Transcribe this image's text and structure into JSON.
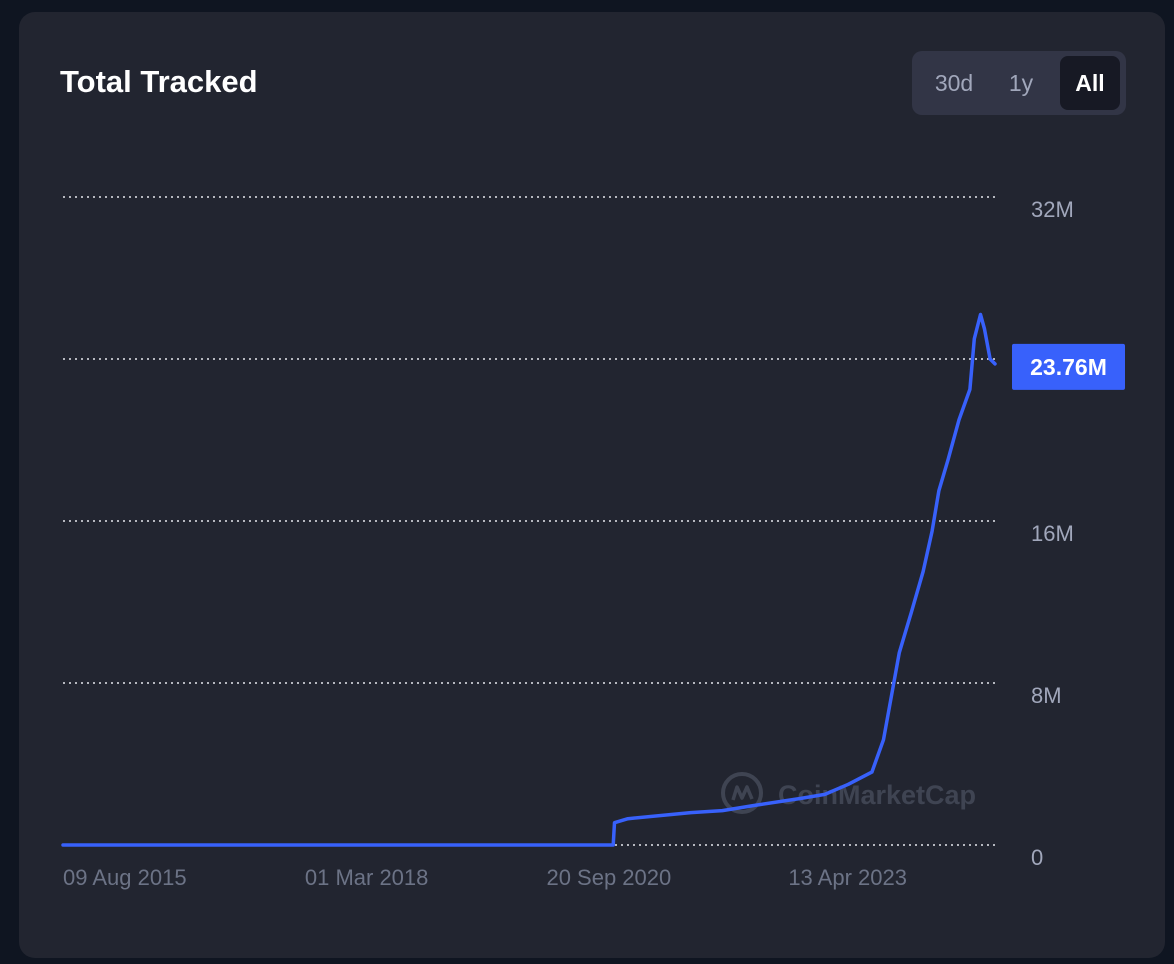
{
  "header": {
    "title": "Total Tracked"
  },
  "range_selector": {
    "options": [
      "30d",
      "1y",
      "All"
    ],
    "selected": "All"
  },
  "watermark": "CoinMarketCap",
  "chart_data": {
    "type": "line",
    "title": "Total Tracked",
    "xlabel": "",
    "ylabel": "",
    "x_tick_labels": [
      "09 Aug 2015",
      "01 Mar 2018",
      "20 Sep 2020",
      "13 Apr 2023"
    ],
    "x_tick_dates": [
      "2015-08-09",
      "2018-03-01",
      "2020-09-20",
      "2023-04-13"
    ],
    "y_tick_labels": [
      "0",
      "8M",
      "16M",
      "32M"
    ],
    "y_tick_values": [
      0,
      8000000,
      16000000,
      32000000
    ],
    "ylim": [
      0,
      32000000
    ],
    "xlim": [
      "2015-08-09",
      "2025-06-20"
    ],
    "grid": true,
    "line_color": "#3861fb",
    "current_value_label": "23.76M",
    "current_value": 23760000,
    "series": [
      {
        "values": [
          {
            "x": "2015-08-09",
            "y": 0
          },
          {
            "x": "2021-06-05",
            "y": 0
          },
          {
            "x": "2021-06-10",
            "y": 1100000
          },
          {
            "x": "2021-08-01",
            "y": 1300000
          },
          {
            "x": "2022-04-01",
            "y": 1600000
          },
          {
            "x": "2022-08-01",
            "y": 1700000
          },
          {
            "x": "2022-12-01",
            "y": 1950000
          },
          {
            "x": "2023-06-01",
            "y": 2300000
          },
          {
            "x": "2023-09-01",
            "y": 2500000
          },
          {
            "x": "2023-12-01",
            "y": 3000000
          },
          {
            "x": "2024-03-01",
            "y": 3600000
          },
          {
            "x": "2024-04-15",
            "y": 5200000
          },
          {
            "x": "2024-06-15",
            "y": 9500000
          },
          {
            "x": "2024-08-01",
            "y": 11500000
          },
          {
            "x": "2024-09-15",
            "y": 13500000
          },
          {
            "x": "2024-10-20",
            "y": 15500000
          },
          {
            "x": "2024-11-15",
            "y": 17500000
          },
          {
            "x": "2024-12-20",
            "y": 19000000
          },
          {
            "x": "2025-02-01",
            "y": 21000000
          },
          {
            "x": "2025-03-15",
            "y": 22500000
          },
          {
            "x": "2025-04-01",
            "y": 25000000
          },
          {
            "x": "2025-04-25",
            "y": 26200000
          },
          {
            "x": "2025-05-10",
            "y": 25500000
          },
          {
            "x": "2025-06-01",
            "y": 24000000
          },
          {
            "x": "2025-06-20",
            "y": 23760000
          }
        ]
      }
    ]
  }
}
